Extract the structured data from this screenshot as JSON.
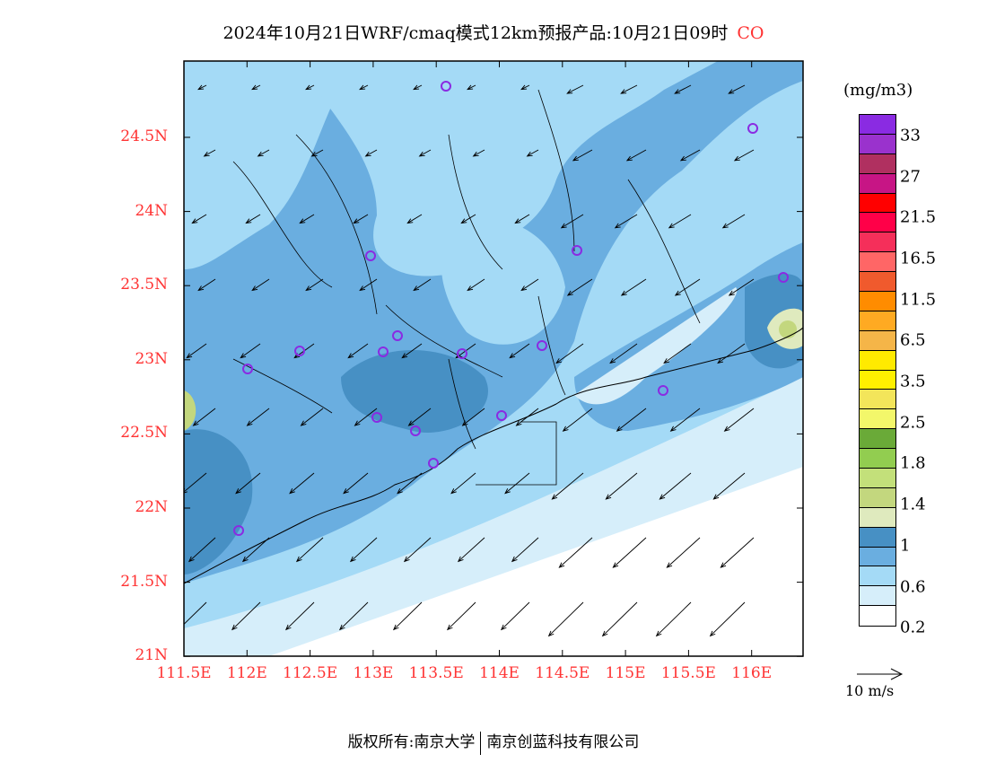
{
  "title": {
    "text": "2024年10月21日WRF/cmaq模式12km预报产品:10月21日09时",
    "species": "CO"
  },
  "lat_labels": [
    "24.5N",
    "24N",
    "23.5N",
    "23N",
    "22.5N",
    "22N",
    "21.5N",
    "21N"
  ],
  "lon_labels": [
    "111.5E",
    "112E",
    "112.5E",
    "113E",
    "113.5E",
    "114E",
    "114.5E",
    "115E",
    "115.5E",
    "116E"
  ],
  "colorbar": {
    "unit": "(mg/m3)",
    "labels": [
      "33",
      "27",
      "21.5",
      "16.5",
      "11.5",
      "6.5",
      "3.5",
      "2.5",
      "1.8",
      "1.4",
      "1",
      "0.6",
      "0.2"
    ],
    "colors": [
      "#8a2be2",
      "#9a32cd",
      "#b03060",
      "#c71585",
      "#ff0000",
      "#ff0048",
      "#f52f5a",
      "#ff6666",
      "#f05a2d",
      "#ff8c00",
      "#ffaa22",
      "#f5b548",
      "#ffea00",
      "#fff000",
      "#f3e55a",
      "#f3f76a",
      "#6aaa38",
      "#92cd50",
      "#c3e07a",
      "#c3d77e",
      "#dfeabe",
      "#4790c4",
      "#6aaee0",
      "#a4daf6",
      "#d6eefa",
      "#ffffff"
    ]
  },
  "wind_reference": "10 m/s",
  "footer": {
    "left": "版权所有:南京大学",
    "right": "南京创蓝科技有限公司"
  }
}
